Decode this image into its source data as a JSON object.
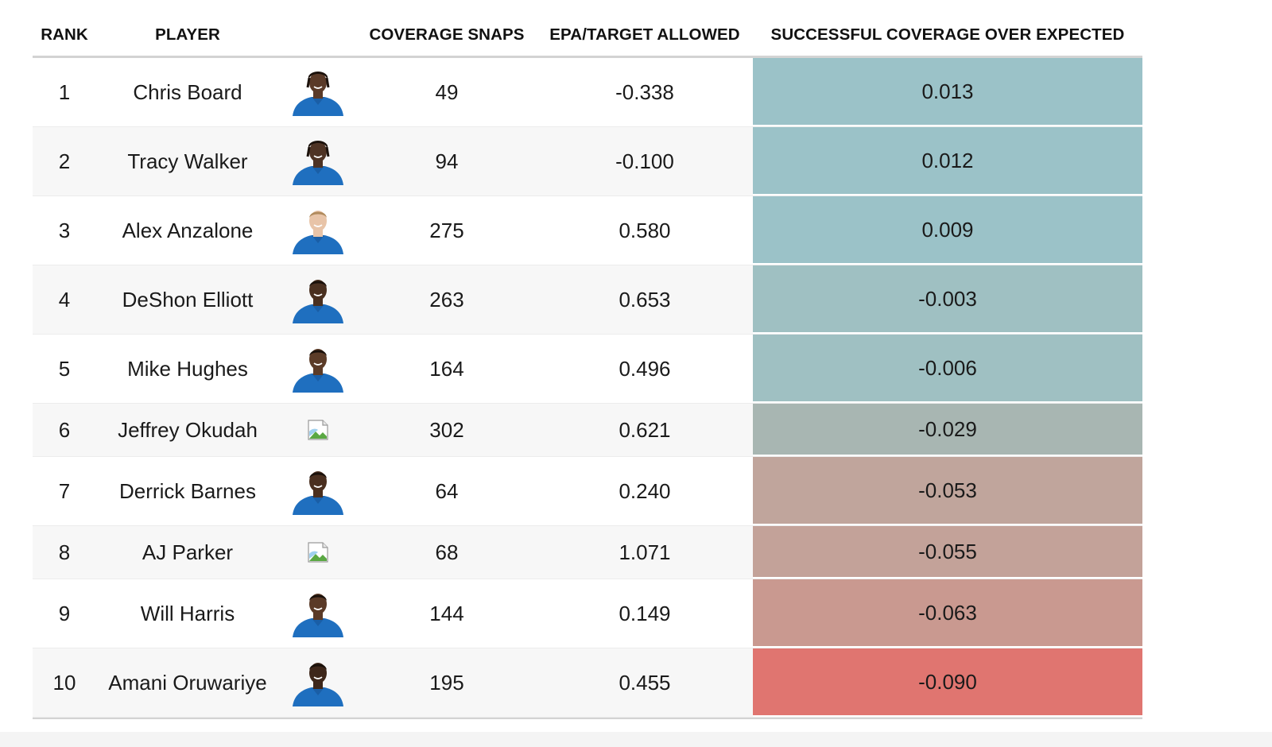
{
  "table": {
    "headers": {
      "rank": "RANK",
      "player": "PLAYER",
      "photo": "",
      "snaps": "COVERAGE SNAPS",
      "epa": "EPA/TARGET ALLOWED",
      "sce": "SUCCESSFUL COVERAGE OVER EXPECTED"
    },
    "rows": [
      {
        "rank": "1",
        "player": "Chris Board",
        "snaps": "49",
        "epa": "-0.338",
        "sce": "0.013",
        "photo": "player-headshot",
        "skin": "#5a3a28",
        "hair": "dreads",
        "color": "#9bc2c8"
      },
      {
        "rank": "2",
        "player": "Tracy Walker",
        "snaps": "94",
        "epa": "-0.100",
        "sce": "0.012",
        "photo": "player-headshot",
        "skin": "#4e3324",
        "hair": "dreads",
        "color": "#9bc2c8"
      },
      {
        "rank": "3",
        "player": "Alex Anzalone",
        "snaps": "275",
        "epa": "0.580",
        "sce": "0.009",
        "photo": "player-headshot",
        "skin": "#e8c4a8",
        "hair": "short-light",
        "color": "#9bc2c8"
      },
      {
        "rank": "4",
        "player": "DeShon Elliott",
        "snaps": "263",
        "epa": "0.653",
        "sce": "-0.003",
        "photo": "player-headshot",
        "skin": "#4a3020",
        "hair": "short",
        "color": "#9fc0c2"
      },
      {
        "rank": "5",
        "player": "Mike Hughes",
        "snaps": "164",
        "epa": "0.496",
        "sce": "-0.006",
        "photo": "player-headshot",
        "skin": "#5c3c28",
        "hair": "short",
        "color": "#9fc0c2"
      },
      {
        "rank": "6",
        "player": "Jeffrey Okudah",
        "snaps": "302",
        "epa": "0.621",
        "sce": "-0.029",
        "photo": "broken-image",
        "skin": "",
        "hair": "",
        "color": "#a8b6b2"
      },
      {
        "rank": "7",
        "player": "Derrick Barnes",
        "snaps": "64",
        "epa": "0.240",
        "sce": "-0.053",
        "photo": "player-headshot",
        "skin": "#4a2f1f",
        "hair": "short",
        "color": "#c0a59c"
      },
      {
        "rank": "8",
        "player": "AJ Parker",
        "snaps": "68",
        "epa": "1.071",
        "sce": "-0.055",
        "photo": "broken-image",
        "skin": "",
        "hair": "",
        "color": "#c3a299"
      },
      {
        "rank": "9",
        "player": "Will Harris",
        "snaps": "144",
        "epa": "0.149",
        "sce": "-0.063",
        "photo": "player-headshot",
        "skin": "#5a3a27",
        "hair": "short",
        "color": "#c99990"
      },
      {
        "rank": "10",
        "player": "Amani Oruwariye",
        "snaps": "195",
        "epa": "0.455",
        "sce": "-0.090",
        "photo": "player-headshot",
        "skin": "#3e271a",
        "hair": "short",
        "color": "#e07570"
      }
    ]
  },
  "chart_data": {
    "type": "table",
    "columns": [
      "RANK",
      "PLAYER",
      "COVERAGE SNAPS",
      "EPA/TARGET ALLOWED",
      "SUCCESSFUL COVERAGE OVER EXPECTED"
    ],
    "rows": [
      [
        1,
        "Chris Board",
        49,
        -0.338,
        0.013
      ],
      [
        2,
        "Tracy Walker",
        94,
        -0.1,
        0.012
      ],
      [
        3,
        "Alex Anzalone",
        275,
        0.58,
        0.009
      ],
      [
        4,
        "DeShon Elliott",
        263,
        0.653,
        -0.003
      ],
      [
        5,
        "Mike Hughes",
        164,
        0.496,
        -0.006
      ],
      [
        6,
        "Jeffrey Okudah",
        302,
        0.621,
        -0.029
      ],
      [
        7,
        "Derrick Barnes",
        64,
        0.24,
        -0.053
      ],
      [
        8,
        "AJ Parker",
        68,
        1.071,
        -0.055
      ],
      [
        9,
        "Will Harris",
        144,
        0.149,
        -0.063
      ],
      [
        10,
        "Amani Oruwariye",
        195,
        0.455,
        -0.09
      ]
    ]
  }
}
